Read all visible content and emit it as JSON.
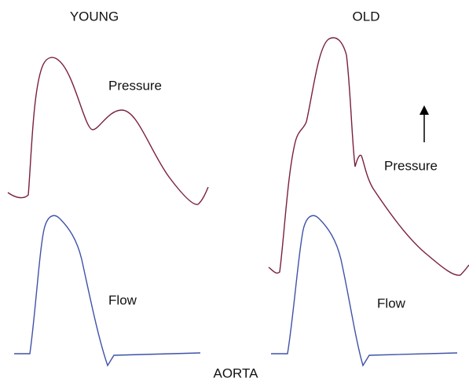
{
  "labels": {
    "young": "YOUNG",
    "old": "OLD",
    "young_pressure": "Pressure",
    "old_pressure": "Pressure",
    "young_flow": "Flow",
    "old_flow": "Flow",
    "footer": "AORTA"
  }
}
